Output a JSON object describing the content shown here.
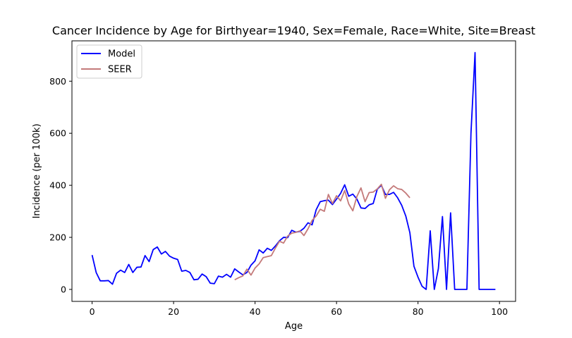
{
  "chart_data": {
    "type": "line",
    "title": "Cancer Incidence by Age for Birthyear=1940, Sex=Female, Race=White, Site=Breast",
    "xlabel": "Age",
    "ylabel": "Incidence (per 100k)",
    "xlim": [
      -4.95,
      103.95
    ],
    "ylim": [
      -46,
      955
    ],
    "xticks": [
      0,
      20,
      40,
      60,
      80,
      100
    ],
    "yticks": [
      0,
      200,
      400,
      600,
      800
    ],
    "grid": false,
    "legend_position": "upper-left",
    "series": [
      {
        "name": "Model",
        "color": "#0000ff",
        "x": [
          0,
          1,
          2,
          3,
          4,
          5,
          6,
          7,
          8,
          9,
          10,
          11,
          12,
          13,
          14,
          15,
          16,
          17,
          18,
          19,
          20,
          21,
          22,
          23,
          24,
          25,
          26,
          27,
          28,
          29,
          30,
          31,
          32,
          33,
          34,
          35,
          36,
          37,
          38,
          39,
          40,
          41,
          42,
          43,
          44,
          45,
          46,
          47,
          48,
          49,
          50,
          51,
          52,
          53,
          54,
          55,
          56,
          57,
          58,
          59,
          60,
          61,
          62,
          63,
          64,
          65,
          66,
          67,
          68,
          69,
          70,
          71,
          72,
          73,
          74,
          75,
          76,
          77,
          78,
          79,
          80,
          81,
          82,
          83,
          84,
          85,
          86,
          87,
          88,
          89,
          90,
          91,
          92,
          93,
          94,
          95,
          96,
          97,
          98,
          99
        ],
        "y": [
          132,
          65,
          33,
          33,
          34,
          20,
          62,
          74,
          65,
          96,
          65,
          85,
          86,
          130,
          107,
          153,
          163,
          136,
          146,
          128,
          120,
          115,
          70,
          73,
          65,
          37,
          39,
          59,
          49,
          24,
          22,
          51,
          47,
          58,
          47,
          79,
          67,
          56,
          65,
          93,
          110,
          152,
          140,
          158,
          150,
          167,
          187,
          200,
          199,
          227,
          220,
          223,
          235,
          256,
          248,
          306,
          337,
          341,
          343,
          326,
          347,
          369,
          402,
          358,
          366,
          347,
          313,
          311,
          325,
          330,
          385,
          400,
          365,
          365,
          373,
          352,
          323,
          282,
          218,
          89,
          47,
          12,
          0,
          225,
          0,
          80,
          280,
          0,
          294,
          0,
          0,
          0,
          0,
          600,
          910,
          0,
          0,
          0,
          0,
          0
        ]
      },
      {
        "name": "SEER",
        "color": "#c47a7a",
        "x": [
          35,
          36,
          37,
          38,
          39,
          40,
          41,
          42,
          43,
          44,
          45,
          46,
          47,
          48,
          49,
          50,
          51,
          52,
          53,
          54,
          55,
          56,
          57,
          58,
          59,
          60,
          61,
          62,
          63,
          64,
          65,
          66,
          67,
          68,
          69,
          70,
          71,
          72,
          73,
          74,
          75,
          76,
          77,
          78
        ],
        "y": [
          37,
          45,
          52,
          78,
          55,
          82,
          98,
          122,
          126,
          130,
          159,
          185,
          178,
          205,
          216,
          219,
          225,
          207,
          233,
          265,
          282,
          308,
          300,
          365,
          330,
          360,
          340,
          380,
          328,
          302,
          357,
          390,
          337,
          372,
          374,
          386,
          404,
          350,
          383,
          398,
          387,
          384,
          370,
          352
        ]
      }
    ]
  }
}
